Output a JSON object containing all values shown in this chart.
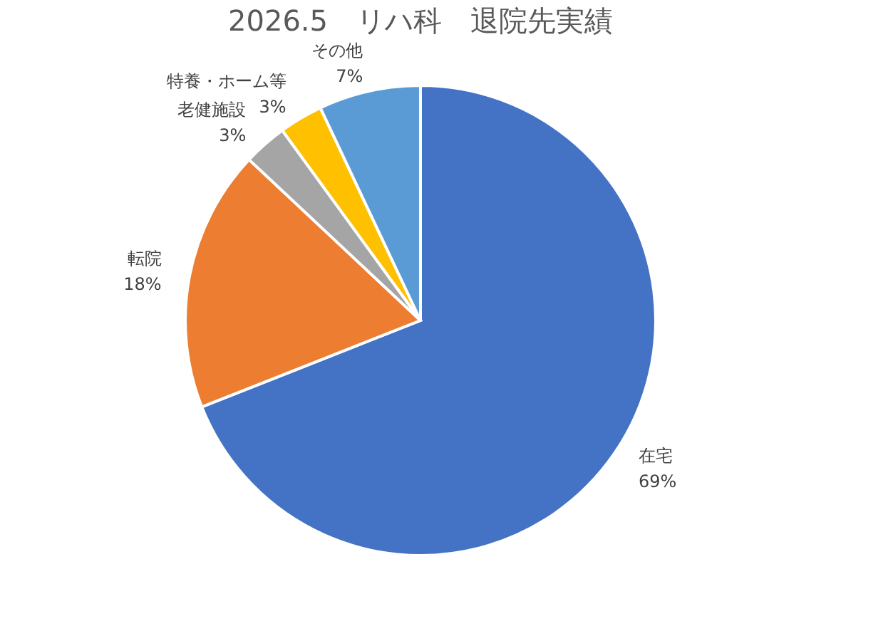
{
  "chart_data": {
    "type": "pie",
    "title": "2026.5　リハ科　退院先実績",
    "categories": [
      "在宅",
      "転院",
      "老健施設",
      "特養・ホーム等",
      "その他"
    ],
    "values": [
      69,
      18,
      3,
      3,
      7
    ],
    "value_labels": [
      "69%",
      "18%",
      "3%",
      "3%",
      "7%"
    ],
    "colors": [
      "#4472c4",
      "#ed7d31",
      "#a5a5a5",
      "#ffc000",
      "#5b9bd5"
    ],
    "legend": false
  }
}
